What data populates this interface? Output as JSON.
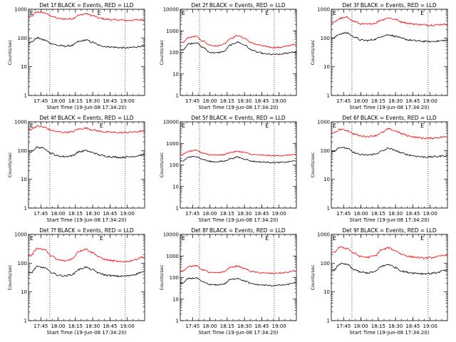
{
  "chart_data": [
    {
      "type": "line",
      "title": "Det 1f BLACK = Events, RED = LLD",
      "ylabel": "Counts/sec",
      "xlabel": "Start Time (19-Jun-08 17:34:20)",
      "yscale": "log",
      "ylim": [
        1,
        1000
      ],
      "yticks": [
        "1",
        "10",
        "100",
        "1000"
      ],
      "xlim": [
        17.5722,
        19.25
      ],
      "xticks": [
        "17:45",
        "18:00",
        "18:15",
        "18:30",
        "18:45",
        "19:00"
      ],
      "xtick_values": [
        17.75,
        18.0,
        18.25,
        18.5,
        18.75,
        19.0
      ],
      "markers": [
        {
          "label": "E",
          "x": 18.5667
        }
      ],
      "vlines": [
        17.88,
        18.97
      ],
      "series": [
        {
          "color": "#ff0000",
          "x": [
            17.6,
            17.7,
            17.8,
            17.9,
            18.0,
            18.1,
            18.2,
            18.3,
            18.4,
            18.5,
            18.6,
            18.7,
            18.8,
            18.9,
            19.0,
            19.1,
            19.2
          ],
          "y": [
            550,
            800,
            750,
            580,
            480,
            460,
            470,
            620,
            700,
            600,
            490,
            450,
            430,
            420,
            410,
            420,
            430
          ]
        },
        {
          "color": "#000000",
          "x": [
            17.6,
            17.7,
            17.8,
            17.9,
            18.0,
            18.1,
            18.2,
            18.3,
            18.4,
            18.5,
            18.6,
            18.7,
            18.8,
            18.9,
            19.0,
            19.1,
            19.2
          ],
          "y": [
            70,
            100,
            85,
            65,
            55,
            52,
            55,
            75,
            85,
            70,
            55,
            50,
            48,
            46,
            45,
            48,
            52
          ]
        }
      ]
    },
    {
      "type": "line",
      "title": "Det 2f BLACK = Events, RED = LLD",
      "ylabel": "Counts/sec",
      "xlabel": "Start Time (19-Jun-08 17:34:20)",
      "yscale": "log",
      "ylim": [
        1,
        10000
      ],
      "yticks": [
        "1",
        "10",
        "100",
        "1000",
        "10000"
      ],
      "xlim": [
        17.5722,
        19.25
      ],
      "xticks": [
        "17:45",
        "18:00",
        "18:15",
        "18:30",
        "18:45",
        "19:00"
      ],
      "xtick_values": [
        17.75,
        18.0,
        18.25,
        18.5,
        18.75,
        19.0
      ],
      "markers": [
        {
          "label": "E",
          "x": 18.8
        }
      ],
      "vlines": [
        17.85,
        18.93
      ],
      "series": [
        {
          "color": "#ff0000",
          "x": [
            17.6,
            17.7,
            17.8,
            17.9,
            18.0,
            18.1,
            18.2,
            18.3,
            18.4,
            18.5,
            18.6,
            18.7,
            18.8,
            18.9,
            19.0,
            19.1,
            19.2
          ],
          "y": [
            280,
            500,
            550,
            330,
            220,
            200,
            240,
            450,
            600,
            450,
            280,
            220,
            190,
            170,
            170,
            190,
            230
          ]
        },
        {
          "color": "#000000",
          "x": [
            17.6,
            17.7,
            17.8,
            17.9,
            18.0,
            18.1,
            18.2,
            18.3,
            18.4,
            18.5,
            18.6,
            18.7,
            18.8,
            18.9,
            19.0,
            19.1,
            19.2
          ],
          "y": [
            130,
            250,
            280,
            170,
            100,
            95,
            110,
            220,
            300,
            220,
            130,
            100,
            85,
            80,
            80,
            90,
            105
          ]
        }
      ]
    },
    {
      "type": "line",
      "title": "Det 3f BLACK = Events, RED = LLD",
      "ylabel": "Counts/sec",
      "xlabel": "Start Time (19-Jun-08 17:34:20)",
      "yscale": "log",
      "ylim": [
        1,
        1000
      ],
      "yticks": [
        "1",
        "10",
        "100",
        "1000"
      ],
      "xlim": [
        17.5722,
        19.25
      ],
      "xticks": [
        "17:45",
        "18:00",
        "18:15",
        "18:30",
        "18:45",
        "19:00"
      ],
      "xtick_values": [
        17.75,
        18.0,
        18.25,
        18.5,
        18.75,
        19.0
      ],
      "markers": [
        {
          "label": "E",
          "x": 18.86
        }
      ],
      "vlines": [
        17.87,
        18.97
      ],
      "series": [
        {
          "color": "#ff0000",
          "x": [
            17.6,
            17.7,
            17.8,
            17.9,
            18.0,
            18.1,
            18.2,
            18.3,
            18.4,
            18.5,
            18.6,
            18.7,
            18.8,
            18.9,
            19.0,
            19.1,
            19.2
          ],
          "y": [
            340,
            480,
            520,
            380,
            310,
            300,
            330,
            430,
            500,
            440,
            360,
            320,
            300,
            290,
            280,
            290,
            300
          ]
        },
        {
          "color": "#000000",
          "x": [
            17.6,
            17.7,
            17.8,
            17.9,
            18.0,
            18.1,
            18.2,
            18.3,
            18.4,
            18.5,
            18.6,
            18.7,
            18.8,
            18.9,
            19.0,
            19.1,
            19.2
          ],
          "y": [
            100,
            140,
            150,
            110,
            85,
            82,
            90,
            115,
            130,
            115,
            95,
            85,
            80,
            77,
            75,
            78,
            82
          ]
        }
      ]
    },
    {
      "type": "line",
      "title": "Det 4f BLACK = Events, RED = LLD",
      "ylabel": "Counts/sec",
      "xlabel": "Start Time (19-Jun-08 17:34:20)",
      "yscale": "log",
      "ylim": [
        1,
        1000
      ],
      "yticks": [
        "1",
        "10",
        "100",
        "1000"
      ],
      "xlim": [
        17.5722,
        19.25
      ],
      "xticks": [
        "17:45",
        "18:00",
        "18:15",
        "18:30",
        "18:45",
        "19:00"
      ],
      "xtick_values": [
        17.75,
        18.0,
        18.25,
        18.5,
        18.75,
        19.0
      ],
      "markers": [
        {
          "label": "E",
          "x": 18.6
        }
      ],
      "vlines": [
        17.88,
        18.97
      ],
      "series": [
        {
          "color": "#ff0000",
          "x": [
            17.6,
            17.7,
            17.8,
            17.9,
            18.0,
            18.1,
            18.2,
            18.3,
            18.4,
            18.5,
            18.6,
            18.7,
            18.8,
            18.9,
            19.0,
            19.1,
            19.2
          ],
          "y": [
            550,
            700,
            650,
            500,
            450,
            430,
            450,
            560,
            600,
            530,
            470,
            440,
            430,
            420,
            430,
            440,
            470
          ]
        },
        {
          "color": "#000000",
          "x": [
            17.6,
            17.7,
            17.8,
            17.9,
            18.0,
            18.1,
            18.2,
            18.3,
            18.4,
            18.5,
            18.6,
            18.7,
            18.8,
            18.9,
            19.0,
            19.1,
            19.2
          ],
          "y": [
            90,
            130,
            120,
            80,
            65,
            62,
            66,
            90,
            100,
            85,
            70,
            63,
            60,
            58,
            60,
            63,
            70
          ]
        }
      ]
    },
    {
      "type": "line",
      "title": "Det 5f BLACK = Events, RED = LLD",
      "ylabel": "Counts/sec",
      "xlabel": "Start Time (19-Jun-08 17:34:20)",
      "yscale": "log",
      "ylim": [
        1,
        10000
      ],
      "yticks": [
        "1",
        "10",
        "100",
        "1000",
        "10000"
      ],
      "xlim": [
        17.5722,
        19.25
      ],
      "xticks": [
        "17:45",
        "18:00",
        "18:15",
        "18:30",
        "18:45",
        "19:00"
      ],
      "xtick_values": [
        17.75,
        18.0,
        18.25,
        18.5,
        18.75,
        19.0
      ],
      "markers": [
        {
          "label": "E",
          "x": 18.8
        }
      ],
      "vlines": [
        17.85,
        18.93
      ],
      "series": [
        {
          "color": "#ff0000",
          "x": [
            17.6,
            17.7,
            17.8,
            17.9,
            18.0,
            18.1,
            18.2,
            18.3,
            18.4,
            18.5,
            18.6,
            18.7,
            18.8,
            18.9,
            19.0,
            19.1,
            19.2
          ],
          "y": [
            300,
            430,
            470,
            360,
            300,
            290,
            300,
            380,
            430,
            380,
            310,
            290,
            280,
            270,
            270,
            280,
            300
          ]
        },
        {
          "color": "#000000",
          "x": [
            17.6,
            17.7,
            17.8,
            17.9,
            18.0,
            18.1,
            18.2,
            18.3,
            18.4,
            18.5,
            18.6,
            18.7,
            18.8,
            18.9,
            19.0,
            19.1,
            19.2
          ],
          "y": [
            150,
            230,
            250,
            180,
            145,
            140,
            150,
            195,
            230,
            190,
            150,
            140,
            135,
            130,
            130,
            135,
            150
          ]
        }
      ]
    },
    {
      "type": "line",
      "title": "Det 6f BLACK = Events, RED = LLD",
      "ylabel": "Counts/sec",
      "xlabel": "Start Time (19-Jun-08 17:34:20)",
      "yscale": "log",
      "ylim": [
        1,
        1000
      ],
      "yticks": [
        "1",
        "10",
        "100",
        "1000"
      ],
      "xlim": [
        17.5722,
        19.25
      ],
      "xticks": [
        "17:45",
        "18:00",
        "18:15",
        "18:30",
        "18:45",
        "19:00"
      ],
      "xtick_values": [
        17.75,
        18.0,
        18.25,
        18.5,
        18.75,
        19.0
      ],
      "markers": [
        {
          "label": "E",
          "x": 18.86
        }
      ],
      "vlines": [
        17.87,
        18.97
      ],
      "series": [
        {
          "color": "#ff0000",
          "x": [
            17.6,
            17.7,
            17.8,
            17.9,
            18.0,
            18.1,
            18.2,
            18.3,
            18.4,
            18.5,
            18.6,
            18.7,
            18.8,
            18.9,
            19.0,
            19.1,
            19.2
          ],
          "y": [
            400,
            550,
            500,
            380,
            320,
            310,
            330,
            420,
            560,
            480,
            380,
            320,
            290,
            270,
            270,
            280,
            300
          ]
        },
        {
          "color": "#000000",
          "x": [
            17.6,
            17.7,
            17.8,
            17.9,
            18.0,
            18.1,
            18.2,
            18.3,
            18.4,
            18.5,
            18.6,
            18.7,
            18.8,
            18.9,
            19.0,
            19.1,
            19.2
          ],
          "y": [
            95,
            130,
            120,
            85,
            72,
            70,
            75,
            95,
            120,
            100,
            80,
            70,
            64,
            60,
            60,
            62,
            66
          ]
        }
      ]
    },
    {
      "type": "line",
      "title": "Det 7f BLACK = Events, RED = LLD",
      "ylabel": "Counts/sec",
      "xlabel": "Start Time (19-Jun-08 17:34:20)",
      "yscale": "log",
      "ylim": [
        1,
        1000
      ],
      "yticks": [
        "1",
        "10",
        "100",
        "1000"
      ],
      "xlim": [
        17.5722,
        19.25
      ],
      "xticks": [
        "17:45",
        "18:00",
        "18:15",
        "18:30",
        "18:45",
        "19:00"
      ],
      "xtick_values": [
        17.75,
        18.0,
        18.25,
        18.5,
        18.75,
        19.0
      ],
      "markers": [
        {
          "label": "E",
          "x": 18.6
        }
      ],
      "vlines": [
        17.88,
        18.97
      ],
      "series": [
        {
          "color": "#ff0000",
          "x": [
            17.6,
            17.7,
            17.8,
            17.9,
            18.0,
            18.1,
            18.2,
            18.3,
            18.4,
            18.5,
            18.6,
            18.7,
            18.8,
            18.9,
            19.0,
            19.1,
            19.2
          ],
          "y": [
            180,
            330,
            300,
            180,
            130,
            120,
            140,
            260,
            310,
            230,
            160,
            130,
            120,
            110,
            115,
            130,
            160
          ]
        },
        {
          "color": "#000000",
          "x": [
            17.6,
            17.7,
            17.8,
            17.9,
            18.0,
            18.1,
            18.2,
            18.3,
            18.4,
            18.5,
            18.6,
            18.7,
            18.8,
            18.9,
            19.0,
            19.1,
            19.2
          ],
          "y": [
            45,
            75,
            70,
            48,
            38,
            36,
            40,
            60,
            72,
            58,
            44,
            38,
            36,
            35,
            36,
            40,
            48
          ]
        }
      ]
    },
    {
      "type": "line",
      "title": "Det 8f BLACK = Events, RED = LLD",
      "ylabel": "Counts/sec",
      "xlabel": "Start Time (19-Jun-08 17:34:20)",
      "yscale": "log",
      "ylim": [
        1,
        10000
      ],
      "yticks": [
        "1",
        "10",
        "100",
        "1000",
        "10000"
      ],
      "xlim": [
        17.5722,
        19.25
      ],
      "xticks": [
        "17:45",
        "18:00",
        "18:15",
        "18:30",
        "18:45",
        "19:00"
      ],
      "xtick_values": [
        17.75,
        18.0,
        18.25,
        18.5,
        18.75,
        19.0
      ],
      "markers": [
        {
          "label": "E",
          "x": 18.8
        }
      ],
      "vlines": [
        17.85,
        18.93
      ],
      "series": [
        {
          "color": "#ff0000",
          "x": [
            17.6,
            17.7,
            17.8,
            17.9,
            18.0,
            18.1,
            18.2,
            18.3,
            18.4,
            18.5,
            18.6,
            18.7,
            18.8,
            18.9,
            19.0,
            19.1,
            19.2
          ],
          "y": [
            200,
            330,
            350,
            230,
            170,
            165,
            185,
            300,
            340,
            260,
            190,
            170,
            160,
            155,
            160,
            170,
            200
          ]
        },
        {
          "color": "#000000",
          "x": [
            17.6,
            17.7,
            17.8,
            17.9,
            18.0,
            18.1,
            18.2,
            18.3,
            18.4,
            18.5,
            18.6,
            18.7,
            18.8,
            18.9,
            19.0,
            19.1,
            19.2
          ],
          "y": [
            55,
            90,
            95,
            62,
            47,
            45,
            50,
            80,
            92,
            70,
            52,
            46,
            44,
            42,
            44,
            46,
            55
          ]
        }
      ]
    },
    {
      "type": "line",
      "title": "Det 9f BLACK = Events, RED = LLD",
      "ylabel": "Counts/sec",
      "xlabel": "Start Time (19-Jun-08 17:34:20)",
      "yscale": "log",
      "ylim": [
        1,
        1000
      ],
      "yticks": [
        "1",
        "10",
        "100",
        "1000"
      ],
      "xlim": [
        17.5722,
        19.25
      ],
      "xticks": [
        "17:45",
        "18:00",
        "18:15",
        "18:30",
        "18:45",
        "19:00"
      ],
      "xtick_values": [
        17.75,
        18.0,
        18.25,
        18.5,
        18.75,
        19.0
      ],
      "markers": [
        {
          "label": "E",
          "x": 18.86
        }
      ],
      "vlines": [
        17.87,
        18.97
      ],
      "series": [
        {
          "color": "#ff0000",
          "x": [
            17.6,
            17.7,
            17.8,
            17.9,
            18.0,
            18.1,
            18.2,
            18.3,
            18.4,
            18.5,
            18.6,
            18.7,
            18.8,
            18.9,
            19.0,
            19.1,
            19.2
          ],
          "y": [
            230,
            360,
            330,
            220,
            170,
            160,
            180,
            290,
            340,
            270,
            200,
            170,
            160,
            150,
            155,
            165,
            190
          ]
        },
        {
          "color": "#000000",
          "x": [
            17.6,
            17.7,
            17.8,
            17.9,
            18.0,
            18.1,
            18.2,
            18.3,
            18.4,
            18.5,
            18.6,
            18.7,
            18.8,
            18.9,
            19.0,
            19.1,
            19.2
          ],
          "y": [
            55,
            95,
            90,
            60,
            48,
            46,
            50,
            78,
            90,
            70,
            52,
            47,
            45,
            43,
            44,
            47,
            55
          ]
        }
      ]
    }
  ]
}
